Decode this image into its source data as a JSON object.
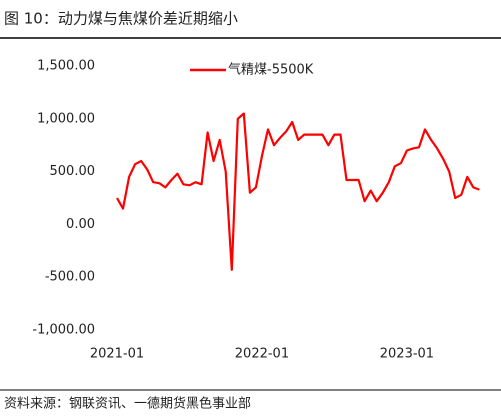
{
  "chart_data": {
    "type": "line",
    "title": "图 10：动力煤与焦煤价差近期缩小",
    "source": "资料来源：钢联资讯、一德期货黑色事业部",
    "categories": [
      "2021-01",
      null,
      null,
      null,
      null,
      null,
      null,
      null,
      null,
      null,
      null,
      null,
      null,
      null,
      null,
      null,
      null,
      null,
      null,
      null,
      null,
      null,
      null,
      null,
      "2022-01",
      null,
      null,
      null,
      null,
      null,
      null,
      null,
      null,
      null,
      null,
      null,
      null,
      null,
      null,
      null,
      null,
      null,
      null,
      null,
      null,
      null,
      null,
      null,
      "2023-01",
      null,
      null,
      null,
      null,
      null,
      null,
      null,
      null,
      null,
      null,
      null,
      null
    ],
    "series": [
      {
        "name": "气精煤-5500K",
        "color": "#ff0000",
        "values": [
          250,
          150,
          450,
          570,
          600,
          520,
          400,
          390,
          350,
          420,
          480,
          380,
          370,
          400,
          380,
          870,
          600,
          800,
          500,
          -430,
          1000,
          1050,
          300,
          350,
          650,
          900,
          750,
          820,
          880,
          970,
          800,
          850,
          850,
          850,
          850,
          750,
          850,
          850,
          420,
          420,
          420,
          220,
          320,
          220,
          300,
          400,
          550,
          580,
          700,
          720,
          730,
          900,
          800,
          720,
          620,
          500,
          250,
          280,
          450,
          350,
          330
        ]
      }
    ],
    "ylim": [
      -1000,
      1500
    ],
    "yticks": [
      {
        "value": -1000,
        "label": "-1,000.00"
      },
      {
        "value": -500,
        "label": "-500.00"
      },
      {
        "value": 0,
        "label": "0.00"
      },
      {
        "value": 500,
        "label": "500.00"
      },
      {
        "value": 1000,
        "label": "1,000.00"
      },
      {
        "value": 1500,
        "label": "1,500.00"
      }
    ],
    "legend": "top"
  }
}
